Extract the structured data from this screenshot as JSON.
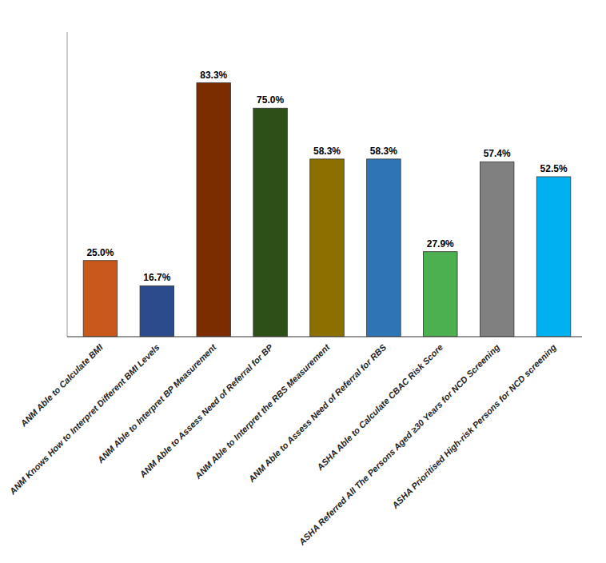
{
  "chart_data": {
    "type": "bar",
    "categories": [
      "ANM Able to Calculate BMI",
      "ANM Knows How to Interpret Different BMI Levels",
      "ANM Able to Interpret BP Measurement",
      "ANM Able to Assess Need of Referral for BP",
      "ANM Able to Interpret the RBS Measurement",
      "ANM Able to Assess Need of Referral for RBS",
      "ASHA Able to Calculate CBAC Risk Score",
      "ASHA Referred All The Persons Aged ≥30 Years for NCD Screening",
      "ASHA Prioritised High-risk Persons for NCD screening"
    ],
    "values": [
      25.0,
      16.7,
      83.3,
      75.0,
      58.3,
      58.3,
      27.9,
      57.4,
      52.5
    ],
    "value_labels": [
      "25.0%",
      "16.7%",
      "83.3%",
      "75.0%",
      "58.3%",
      "58.3%",
      "27.9%",
      "57.4%",
      "52.5%"
    ],
    "colors": [
      "#C8591A",
      "#2B4B8C",
      "#7B2D00",
      "#2D5016",
      "#8B7000",
      "#2E75B6",
      "#4CAF50",
      "#808080",
      "#00B0F0"
    ],
    "ylim": [
      0,
      100
    ],
    "data_labels": true,
    "tick_labels": "x",
    "grid": false
  }
}
